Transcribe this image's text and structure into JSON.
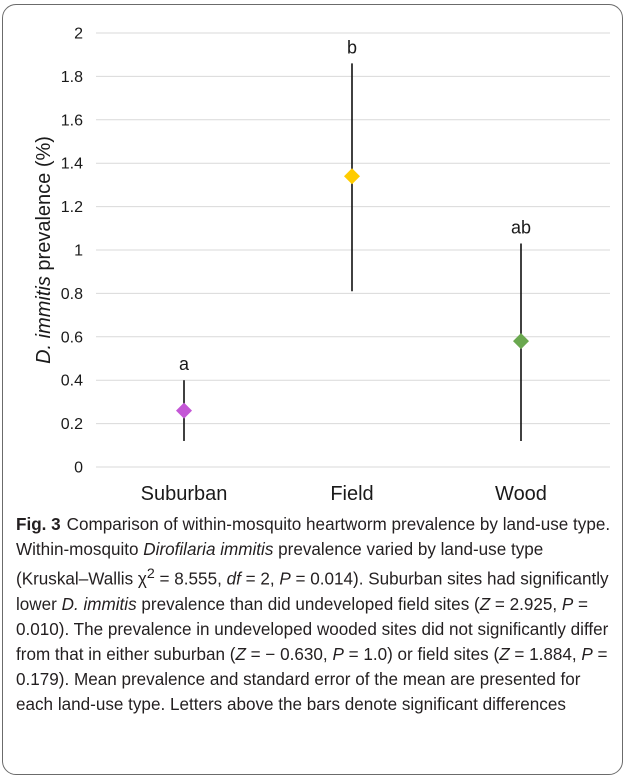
{
  "chart_data": {
    "type": "scatter",
    "categories": [
      "Suburban",
      "Field",
      "Wood"
    ],
    "values": [
      0.26,
      1.34,
      0.58
    ],
    "error_low": [
      0.12,
      0.81,
      0.12
    ],
    "error_high": [
      0.4,
      1.86,
      1.03
    ],
    "significance_letters": [
      "a",
      "b",
      "ab"
    ],
    "marker_colors": [
      "#c457d6",
      "#ffcc00",
      "#6aa84f"
    ],
    "marker_shape": "diamond",
    "ylabel_italic": "D. immitis",
    "ylabel_rest": " prevalence (%)",
    "ylim": [
      0,
      2
    ],
    "yticks": [
      "0",
      "0.2",
      "0.4",
      "0.6",
      "0.8",
      "1",
      "1.2",
      "1.4",
      "1.6",
      "1.8",
      "2"
    ],
    "grid": true
  },
  "caption": {
    "fig_label": "Fig. 3",
    "p1": "Comparison of within-mosquito heartworm prevalence by land-use type. Within-mosquito ",
    "i1": "Dirofilaria immitis",
    "p2": " prevalence varied by land-use type (Kruskal–Wallis χ",
    "sup": "2",
    "p3": " = 8.555, ",
    "i2": "df",
    "p4": " = 2, ",
    "i3": "P",
    "p5": " = 0.014). Suburban sites had significantly lower ",
    "i4": "D. immitis",
    "p6": " prevalence than did undeveloped field sites (",
    "i5": "Z",
    "p7": " = 2.925, ",
    "i6": "P",
    "p8": " = 0.010). The prevalence in undeveloped wooded sites did not significantly differ from that in either suburban (",
    "i7": "Z",
    "p9": " = − 0.630, ",
    "i8": "P",
    "p10": " = 1.0) or field sites (",
    "i9": "Z",
    "p11": " = 1.884, ",
    "i10": "P",
    "p12": " = 0.179). Mean prevalence and standard error of the mean are presented for each land-use type. Letters above the bars denote significant differences"
  }
}
